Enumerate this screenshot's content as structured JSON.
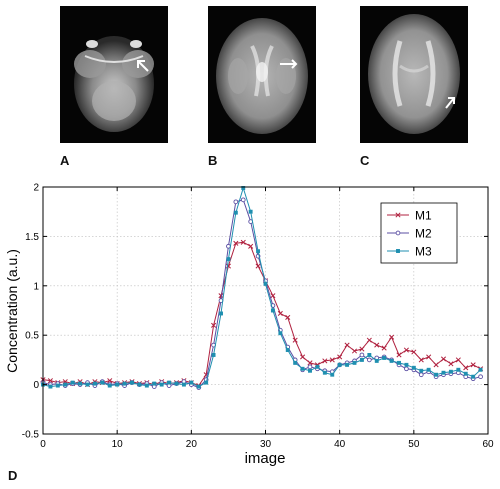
{
  "panels": [
    {
      "letter": "A"
    },
    {
      "letter": "B"
    },
    {
      "letter": "C"
    },
    {
      "letter": "D"
    }
  ],
  "chart_data": {
    "type": "line",
    "xlabel": "image",
    "ylabel": "Concentration (a.u.)",
    "xlim": [
      0,
      60
    ],
    "ylim": [
      -0.5,
      2
    ],
    "xticks": [
      0,
      10,
      20,
      30,
      40,
      50,
      60
    ],
    "yticks": [
      -0.5,
      0,
      0.5,
      1,
      1.5,
      2
    ],
    "xtick_labels": [
      "0",
      "10",
      "20",
      "30",
      "40",
      "50",
      "60"
    ],
    "ytick_labels": [
      "-0.5",
      "0",
      "0.5",
      "1",
      "1.5",
      "2"
    ],
    "grid": true,
    "legend_position": "top-right",
    "x": [
      0,
      1,
      2,
      3,
      4,
      5,
      6,
      7,
      8,
      9,
      10,
      11,
      12,
      13,
      14,
      15,
      16,
      17,
      18,
      19,
      20,
      21,
      22,
      23,
      24,
      25,
      26,
      27,
      28,
      29,
      30,
      31,
      32,
      33,
      34,
      35,
      36,
      37,
      38,
      39,
      40,
      41,
      42,
      43,
      44,
      45,
      46,
      47,
      48,
      49,
      50,
      51,
      52,
      53,
      54,
      55,
      56,
      57,
      58,
      59
    ],
    "series": [
      {
        "name": "M1",
        "color": "#b0213f",
        "marker": "x",
        "values": [
          0.05,
          0.04,
          0.02,
          0.03,
          0.01,
          0.03,
          0.0,
          0.03,
          0.02,
          0.04,
          0.01,
          0.02,
          0.03,
          0.01,
          0.02,
          0.0,
          0.03,
          0.01,
          0.02,
          0.04,
          0.02,
          -0.01,
          0.1,
          0.6,
          0.9,
          1.2,
          1.43,
          1.44,
          1.4,
          1.2,
          1.05,
          0.9,
          0.72,
          0.68,
          0.45,
          0.28,
          0.22,
          0.2,
          0.24,
          0.25,
          0.28,
          0.4,
          0.34,
          0.36,
          0.45,
          0.4,
          0.37,
          0.48,
          0.3,
          0.35,
          0.33,
          0.25,
          0.28,
          0.2,
          0.26,
          0.21,
          0.25,
          0.17,
          0.2,
          0.16
        ]
      },
      {
        "name": "M2",
        "color": "#5b4fa3",
        "marker": "o",
        "values": [
          0.02,
          0.0,
          0.01,
          -0.01,
          0.01,
          0.0,
          0.02,
          -0.01,
          0.03,
          0.0,
          0.01,
          -0.01,
          0.02,
          0.0,
          0.01,
          -0.02,
          0.02,
          -0.01,
          0.01,
          0.03,
          0.0,
          -0.03,
          0.05,
          0.4,
          0.85,
          1.4,
          1.85,
          1.87,
          1.65,
          1.3,
          1.05,
          0.8,
          0.55,
          0.38,
          0.25,
          0.15,
          0.18,
          0.16,
          0.14,
          0.13,
          0.2,
          0.22,
          0.24,
          0.3,
          0.25,
          0.27,
          0.28,
          0.25,
          0.2,
          0.16,
          0.15,
          0.1,
          0.13,
          0.08,
          0.1,
          0.11,
          0.12,
          0.08,
          0.06,
          0.08
        ]
      },
      {
        "name": "M3",
        "color": "#1f8fb0",
        "marker": "s",
        "values": [
          0.0,
          -0.02,
          -0.01,
          0.0,
          0.02,
          0.01,
          0.0,
          0.01,
          0.02,
          -0.01,
          0.0,
          0.01,
          0.02,
          0.0,
          -0.01,
          0.01,
          0.0,
          0.02,
          0.01,
          0.0,
          0.02,
          -0.02,
          0.02,
          0.3,
          0.72,
          1.27,
          1.74,
          1.99,
          1.75,
          1.35,
          1.02,
          0.75,
          0.52,
          0.35,
          0.22,
          0.16,
          0.14,
          0.18,
          0.12,
          0.1,
          0.2,
          0.2,
          0.22,
          0.25,
          0.3,
          0.24,
          0.27,
          0.24,
          0.22,
          0.2,
          0.17,
          0.14,
          0.15,
          0.1,
          0.12,
          0.13,
          0.15,
          0.11,
          0.08,
          0.15
        ]
      }
    ]
  }
}
